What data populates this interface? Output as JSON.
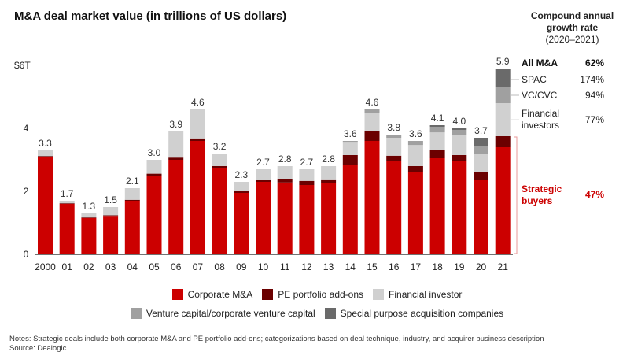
{
  "title": "M&A deal market value (in trillions of US dollars)",
  "cagr_header": {
    "line1": "Compound annual",
    "line2": "growth rate",
    "line3": "(2020–2021)"
  },
  "cagr": [
    {
      "label": "All M&A",
      "value": "62%",
      "style": "bold"
    },
    {
      "label": "SPAC",
      "value": "174%",
      "style": "normal"
    },
    {
      "label": "VC/CVC",
      "value": "94%",
      "style": "normal"
    },
    {
      "label": "Financial",
      "label2": "investors",
      "value": "77%",
      "style": "normal"
    },
    {
      "label": "Strategic",
      "label2": "buyers",
      "value": "47%",
      "style": "red"
    }
  ],
  "legend": {
    "row1": [
      {
        "label": "Corporate M&A",
        "color": "#cc0000"
      },
      {
        "label": "PE portfolio add-ons",
        "color": "#6b0000"
      },
      {
        "label": "Financial investor",
        "color": "#d0d0d0"
      }
    ],
    "row2": [
      {
        "label": "Venture capital/corporate venture capital",
        "color": "#a0a0a0"
      },
      {
        "label": "Special purpose acquisition companies",
        "color": "#6a6a6a"
      }
    ]
  },
  "notes": "Notes: Strategic deals include both corporate M&A and PE portfolio add-ons; categorizations based on deal technique, industry, and acquirer business description",
  "source": "Source: Dealogic",
  "chart_data": {
    "type": "bar",
    "stacked": true,
    "title": "M&A deal market value (in trillions of US dollars)",
    "xlabel": "",
    "ylabel": "",
    "ylim": [
      0,
      6
    ],
    "yticks": [
      {
        "value": 0,
        "label": "0"
      },
      {
        "value": 2,
        "label": "2"
      },
      {
        "value": 4,
        "label": "4"
      },
      {
        "value": 6,
        "label": "$6T"
      }
    ],
    "categories": [
      "2000",
      "01",
      "02",
      "03",
      "04",
      "05",
      "06",
      "07",
      "08",
      "09",
      "10",
      "11",
      "12",
      "13",
      "14",
      "15",
      "16",
      "17",
      "18",
      "19",
      "20",
      "21"
    ],
    "totals": [
      "3.3",
      "1.7",
      "1.3",
      "1.5",
      "2.1",
      "3.0",
      "3.9",
      "4.6",
      "3.2",
      "2.3",
      "2.7",
      "2.8",
      "2.7",
      "2.8",
      "3.6",
      "4.6",
      "3.8",
      "3.6",
      "4.1",
      "4.0",
      "3.7",
      "5.9"
    ],
    "series": [
      {
        "name": "Corporate M&A",
        "color": "#cc0000",
        "values": [
          3.1,
          1.6,
          1.15,
          1.22,
          1.7,
          2.5,
          3.0,
          3.6,
          2.75,
          1.95,
          2.3,
          2.28,
          2.2,
          2.25,
          2.85,
          3.6,
          2.95,
          2.6,
          3.05,
          2.95,
          2.35,
          3.4
        ]
      },
      {
        "name": "PE portfolio add-ons",
        "color": "#6b0000",
        "values": [
          0.02,
          0.02,
          0.02,
          0.02,
          0.03,
          0.06,
          0.07,
          0.08,
          0.05,
          0.07,
          0.07,
          0.12,
          0.13,
          0.13,
          0.3,
          0.32,
          0.18,
          0.2,
          0.27,
          0.2,
          0.25,
          0.35
        ]
      },
      {
        "name": "Financial investor",
        "color": "#d0d0d0",
        "values": [
          0.18,
          0.08,
          0.13,
          0.26,
          0.37,
          0.44,
          0.83,
          0.92,
          0.4,
          0.28,
          0.33,
          0.4,
          0.37,
          0.42,
          0.42,
          0.58,
          0.57,
          0.67,
          0.55,
          0.65,
          0.58,
          1.05
        ]
      },
      {
        "name": "Venture capital/corporate venture capital",
        "color": "#a0a0a0",
        "values": [
          0,
          0,
          0,
          0,
          0,
          0,
          0,
          0,
          0,
          0,
          0,
          0,
          0,
          0,
          0.03,
          0.1,
          0.1,
          0.13,
          0.18,
          0.15,
          0.27,
          0.5
        ]
      },
      {
        "name": "Special purpose acquisition companies",
        "color": "#6a6a6a",
        "values": [
          0,
          0,
          0,
          0,
          0,
          0,
          0,
          0,
          0,
          0,
          0,
          0,
          0,
          0,
          0,
          0,
          0,
          0,
          0.05,
          0.05,
          0.25,
          0.6
        ]
      }
    ],
    "legend_position": "bottom",
    "grid": false
  }
}
